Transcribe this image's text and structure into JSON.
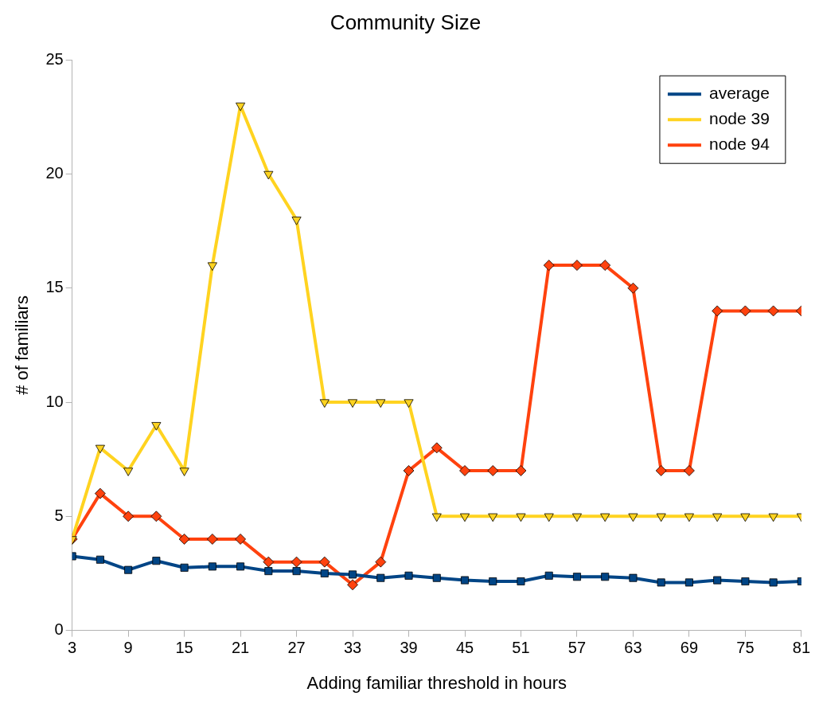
{
  "chart_data": {
    "type": "line",
    "title": "Community Size",
    "xlabel": "Adding familiar threshold in hours",
    "ylabel": "# of familiars",
    "x": [
      3,
      6,
      9,
      12,
      15,
      18,
      21,
      24,
      27,
      30,
      33,
      36,
      39,
      42,
      45,
      48,
      51,
      54,
      57,
      60,
      63,
      66,
      69,
      72,
      75,
      78,
      81
    ],
    "xlim": [
      3,
      81
    ],
    "xticks": [
      3,
      9,
      15,
      21,
      27,
      33,
      39,
      45,
      51,
      57,
      63,
      69,
      75,
      81
    ],
    "ylim": [
      0,
      25
    ],
    "yticks": [
      0,
      5,
      10,
      15,
      20,
      25
    ],
    "grid": false,
    "legend": "top right",
    "series": [
      {
        "name": "average",
        "color": "#004586",
        "marker": "square",
        "values": [
          3.25,
          3.1,
          2.65,
          3.05,
          2.75,
          2.8,
          2.8,
          2.6,
          2.6,
          2.5,
          2.45,
          2.3,
          2.4,
          2.3,
          2.2,
          2.15,
          2.15,
          2.4,
          2.35,
          2.35,
          2.3,
          2.1,
          2.1,
          2.2,
          2.15,
          2.1,
          2.15
        ]
      },
      {
        "name": "node 39",
        "color": "#ffd320",
        "marker": "triangle",
        "values": [
          4,
          8,
          7,
          9,
          7,
          16,
          23,
          20,
          18,
          10,
          10,
          10,
          10,
          5,
          5,
          5,
          5,
          5,
          5,
          5,
          5,
          5,
          5,
          5,
          5,
          5,
          5
        ]
      },
      {
        "name": "node 94",
        "color": "#ff420e",
        "marker": "diamond",
        "values": [
          4,
          6,
          5,
          5,
          4,
          4,
          4,
          3,
          3,
          3,
          2,
          3,
          7,
          8,
          7,
          7,
          7,
          16,
          16,
          16,
          15,
          7,
          7,
          14,
          14,
          14,
          14
        ]
      }
    ]
  }
}
